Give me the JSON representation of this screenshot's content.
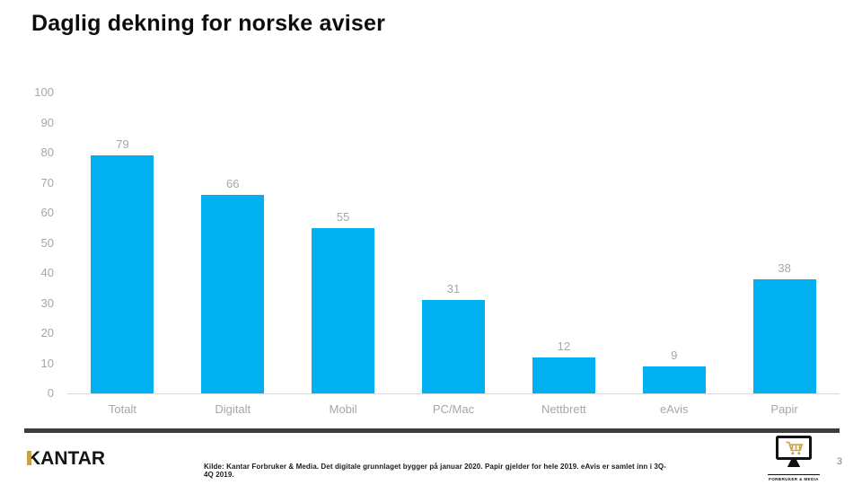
{
  "title": "Daglig dekning for norske aviser",
  "chart_data": {
    "type": "bar",
    "title": "Daglig dekning for norske aviser",
    "categories": [
      "Totalt",
      "Digitalt",
      "Mobil",
      "PC/Mac",
      "Nettbrett",
      "eAvis",
      "Papir"
    ],
    "values": [
      79,
      66,
      55,
      31,
      12,
      9,
      38
    ],
    "xlabel": "",
    "ylabel": "",
    "ylim": [
      0,
      100
    ],
    "ytick_step": 10,
    "grid": false,
    "legend": "none",
    "value_labels_shown": true,
    "bar_color": "#00b0f0",
    "label_color": "#a6a6a6"
  },
  "footer": {
    "logo_text": "KANTAR",
    "source_text": "Kilde:  Kantar Forbruker & Media. Det digitale grunnlaget bygger på januar 2020. Papir gjelder for hele 2019. eAvis er samlet inn i 3Q-4Q 2019.",
    "badge_caption": "FORBRUKER & MEDIA",
    "page_number": "3"
  },
  "colors": {
    "bar": "#00b0f0",
    "axis_text": "#a6a6a6",
    "axis_line": "#d9d9d9",
    "divider": "#3d3d3d",
    "gold": "#c7a24b"
  }
}
